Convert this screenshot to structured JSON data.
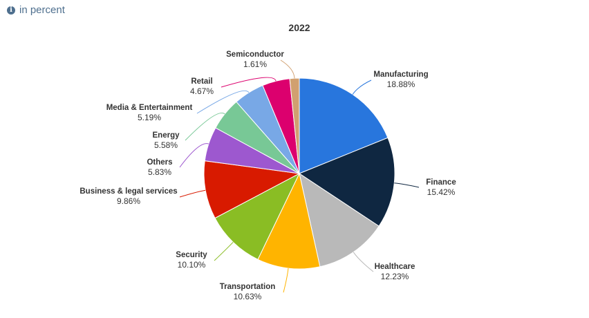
{
  "note": {
    "icon": "info-icon",
    "text": "in percent"
  },
  "chart_data": {
    "type": "pie",
    "title": "2022",
    "unit": "%",
    "slices": [
      {
        "name": "Manufacturing",
        "value": 18.88,
        "label": "18.88%",
        "color": "#2876dd"
      },
      {
        "name": "Finance",
        "value": 15.42,
        "label": "15.42%",
        "color": "#0f2741"
      },
      {
        "name": "Healthcare",
        "value": 12.23,
        "label": "12.23%",
        "color": "#b9b9b9"
      },
      {
        "name": "Transportation",
        "value": 10.63,
        "label": "10.63%",
        "color": "#ffb400"
      },
      {
        "name": "Security",
        "value": 10.1,
        "label": "10.10%",
        "color": "#8abd24"
      },
      {
        "name": "Business & legal services",
        "value": 9.86,
        "label": "9.86%",
        "color": "#d81a00"
      },
      {
        "name": "Others",
        "value": 5.83,
        "label": "5.83%",
        "color": "#9d58cf"
      },
      {
        "name": "Energy",
        "value": 5.58,
        "label": "5.58%",
        "color": "#78c896"
      },
      {
        "name": "Media & Entertainment",
        "value": 5.19,
        "label": "5.19%",
        "color": "#78a8e6"
      },
      {
        "name": "Retail",
        "value": 4.67,
        "label": "4.67%",
        "color": "#dc006e"
      },
      {
        "name": "Semiconductor",
        "value": 1.61,
        "label": "1.61%",
        "color": "#d1a070"
      }
    ]
  }
}
